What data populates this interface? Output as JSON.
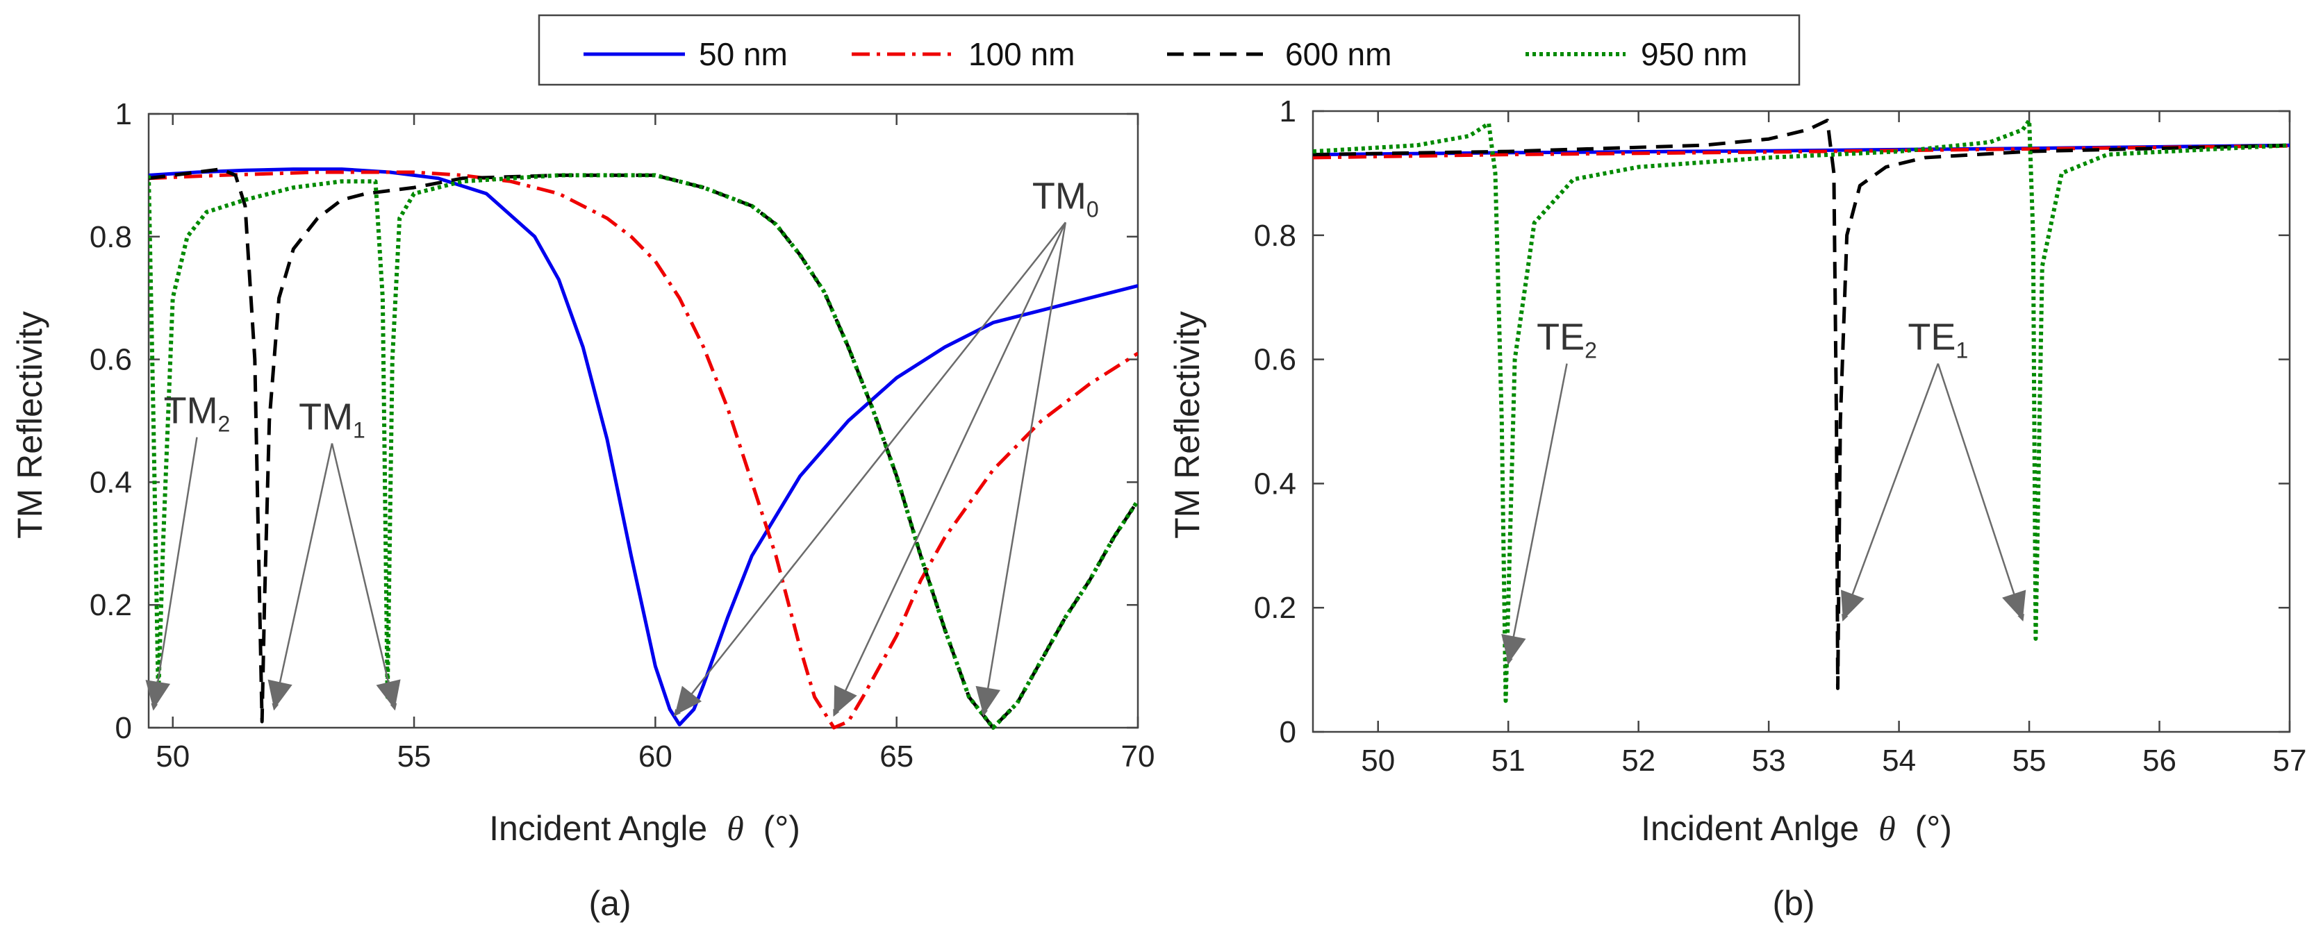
{
  "legend": {
    "entries": [
      {
        "label": "50 nm",
        "color": "#0000ee",
        "dash": "solid"
      },
      {
        "label": "100 nm",
        "color": "#ee0000",
        "dash": "dashdot"
      },
      {
        "label": "600 nm",
        "color": "#000000",
        "dash": "dashed"
      },
      {
        "label": "950 nm",
        "color": "#008a00",
        "dash": "dotted"
      }
    ]
  },
  "chart_data": [
    {
      "type": "line",
      "caption": "(a)",
      "xlabel": "Incident Angle",
      "xlabel_symbol": "θ",
      "xlabel_unit": "(°)",
      "ylabel": "TM Reflectivity",
      "xlim": [
        49.5,
        70
      ],
      "ylim": [
        0,
        1
      ],
      "xticks": [
        50,
        55,
        60,
        65,
        70
      ],
      "yticks": [
        0,
        0.2,
        0.4,
        0.6,
        0.8,
        1
      ],
      "series": [
        {
          "name": "50 nm",
          "points": [
            [
              49.5,
              0.9
            ],
            [
              50.5,
              0.905
            ],
            [
              51.5,
              0.908
            ],
            [
              52.5,
              0.91
            ],
            [
              53.5,
              0.91
            ],
            [
              54.5,
              0.905
            ],
            [
              55.5,
              0.895
            ],
            [
              56.5,
              0.87
            ],
            [
              57.5,
              0.8
            ],
            [
              58,
              0.73
            ],
            [
              58.5,
              0.62
            ],
            [
              59,
              0.47
            ],
            [
              59.5,
              0.28
            ],
            [
              60,
              0.1
            ],
            [
              60.3,
              0.03
            ],
            [
              60.5,
              0.005
            ],
            [
              60.8,
              0.03
            ],
            [
              61,
              0.07
            ],
            [
              61.5,
              0.18
            ],
            [
              62,
              0.28
            ],
            [
              63,
              0.41
            ],
            [
              64,
              0.5
            ],
            [
              65,
              0.57
            ],
            [
              66,
              0.62
            ],
            [
              67,
              0.66
            ],
            [
              68,
              0.68
            ],
            [
              69,
              0.7
            ],
            [
              70,
              0.72
            ]
          ]
        },
        {
          "name": "100 nm",
          "points": [
            [
              49.5,
              0.895
            ],
            [
              51,
              0.9
            ],
            [
              53,
              0.905
            ],
            [
              55,
              0.905
            ],
            [
              56,
              0.9
            ],
            [
              57,
              0.89
            ],
            [
              58,
              0.87
            ],
            [
              59,
              0.83
            ],
            [
              59.5,
              0.8
            ],
            [
              60,
              0.76
            ],
            [
              60.5,
              0.7
            ],
            [
              61,
              0.62
            ],
            [
              61.5,
              0.52
            ],
            [
              62,
              0.4
            ],
            [
              62.5,
              0.28
            ],
            [
              63,
              0.13
            ],
            [
              63.3,
              0.05
            ],
            [
              63.7,
              0
            ],
            [
              64,
              0.01
            ],
            [
              64.3,
              0.05
            ],
            [
              65,
              0.15
            ],
            [
              65.5,
              0.24
            ],
            [
              66,
              0.31
            ],
            [
              67,
              0.42
            ],
            [
              68,
              0.5
            ],
            [
              69,
              0.56
            ],
            [
              70,
              0.61
            ]
          ]
        },
        {
          "name": "600 nm",
          "points": [
            [
              49.5,
              0.895
            ],
            [
              50.5,
              0.905
            ],
            [
              51,
              0.91
            ],
            [
              51.3,
              0.9
            ],
            [
              51.5,
              0.85
            ],
            [
              51.7,
              0.6
            ],
            [
              51.8,
              0.2
            ],
            [
              51.85,
              0.01
            ],
            [
              51.9,
              0.2
            ],
            [
              52,
              0.5
            ],
            [
              52.2,
              0.7
            ],
            [
              52.5,
              0.78
            ],
            [
              53,
              0.83
            ],
            [
              53.5,
              0.86
            ],
            [
              54,
              0.87
            ],
            [
              55,
              0.88
            ],
            [
              56,
              0.895
            ],
            [
              58,
              0.9
            ],
            [
              60,
              0.9
            ],
            [
              61,
              0.88
            ],
            [
              62,
              0.85
            ],
            [
              62.5,
              0.82
            ],
            [
              63,
              0.77
            ],
            [
              63.5,
              0.71
            ],
            [
              64,
              0.62
            ],
            [
              64.5,
              0.52
            ],
            [
              65,
              0.41
            ],
            [
              65.5,
              0.28
            ],
            [
              66,
              0.16
            ],
            [
              66.5,
              0.05
            ],
            [
              67,
              0
            ],
            [
              67.5,
              0.04
            ],
            [
              68,
              0.11
            ],
            [
              68.5,
              0.18
            ],
            [
              69,
              0.24
            ],
            [
              69.5,
              0.31
            ],
            [
              70,
              0.37
            ]
          ]
        },
        {
          "name": "950 nm",
          "points": [
            [
              49.5,
              0.9
            ],
            [
              49.6,
              0.5
            ],
            [
              49.7,
              0.05
            ],
            [
              49.8,
              0.3
            ],
            [
              50,
              0.7
            ],
            [
              50.3,
              0.8
            ],
            [
              50.7,
              0.84
            ],
            [
              51.5,
              0.86
            ],
            [
              52.5,
              0.88
            ],
            [
              53.5,
              0.89
            ],
            [
              54.2,
              0.89
            ],
            [
              54.35,
              0.7
            ],
            [
              54.45,
              0.05
            ],
            [
              54.55,
              0.6
            ],
            [
              54.7,
              0.83
            ],
            [
              55,
              0.87
            ],
            [
              56,
              0.89
            ],
            [
              58,
              0.9
            ],
            [
              60,
              0.9
            ],
            [
              61,
              0.88
            ],
            [
              62,
              0.85
            ],
            [
              62.5,
              0.82
            ],
            [
              63,
              0.77
            ],
            [
              63.5,
              0.71
            ],
            [
              64,
              0.62
            ],
            [
              64.5,
              0.52
            ],
            [
              65,
              0.41
            ],
            [
              65.5,
              0.28
            ],
            [
              66,
              0.16
            ],
            [
              66.5,
              0.05
            ],
            [
              67,
              0
            ],
            [
              67.5,
              0.04
            ],
            [
              68,
              0.11
            ],
            [
              68.5,
              0.18
            ],
            [
              69,
              0.24
            ],
            [
              69.5,
              0.31
            ],
            [
              70,
              0.37
            ]
          ]
        }
      ],
      "annotations": [
        {
          "main": "TM",
          "sub": "2",
          "x": 50.5,
          "y": 0.48,
          "targets": [
            [
              49.6,
              0.03
            ]
          ]
        },
        {
          "main": "TM",
          "sub": "1",
          "x": 53.3,
          "y": 0.47,
          "targets": [
            [
              52.1,
              0.03
            ],
            [
              54.6,
              0.03
            ]
          ]
        },
        {
          "main": "TM",
          "sub": "0",
          "x": 68.5,
          "y": 0.83,
          "targets": [
            [
              60.4,
              0.02
            ],
            [
              63.7,
              0.02
            ],
            [
              66.8,
              0.02
            ]
          ]
        }
      ]
    },
    {
      "type": "line",
      "caption": "(b)",
      "xlabel": "Incident Anlge",
      "xlabel_symbol": "θ",
      "xlabel_unit": "(°)",
      "ylabel": "TM Reflectivity",
      "xlim": [
        49.5,
        57
      ],
      "ylim": [
        0,
        1
      ],
      "xticks": [
        50,
        51,
        52,
        53,
        54,
        55,
        56,
        57
      ],
      "yticks": [
        0,
        0.2,
        0.4,
        0.6,
        0.8,
        1
      ],
      "series": [
        {
          "name": "50 nm",
          "points": [
            [
              49.5,
              0.93
            ],
            [
              51,
              0.933
            ],
            [
              53,
              0.936
            ],
            [
              55,
              0.94
            ],
            [
              57,
              0.945
            ]
          ]
        },
        {
          "name": "100 nm",
          "points": [
            [
              49.5,
              0.925
            ],
            [
              51,
              0.93
            ],
            [
              53,
              0.934
            ],
            [
              55,
              0.939
            ],
            [
              57,
              0.944
            ]
          ]
        },
        {
          "name": "600 nm",
          "points": [
            [
              49.5,
              0.93
            ],
            [
              51,
              0.935
            ],
            [
              52.5,
              0.945
            ],
            [
              53,
              0.955
            ],
            [
              53.3,
              0.97
            ],
            [
              53.45,
              0.985
            ],
            [
              53.5,
              0.9
            ],
            [
              53.52,
              0.5
            ],
            [
              53.53,
              0.07
            ],
            [
              53.55,
              0.5
            ],
            [
              53.6,
              0.8
            ],
            [
              53.7,
              0.88
            ],
            [
              53.9,
              0.91
            ],
            [
              54.2,
              0.925
            ],
            [
              55,
              0.935
            ],
            [
              57,
              0.945
            ]
          ]
        },
        {
          "name": "950 nm",
          "points": [
            [
              49.5,
              0.935
            ],
            [
              50.3,
              0.945
            ],
            [
              50.7,
              0.96
            ],
            [
              50.85,
              0.98
            ],
            [
              50.9,
              0.9
            ],
            [
              50.95,
              0.5
            ],
            [
              50.98,
              0.05
            ],
            [
              51.05,
              0.6
            ],
            [
              51.2,
              0.82
            ],
            [
              51.5,
              0.89
            ],
            [
              52,
              0.91
            ],
            [
              53,
              0.925
            ],
            [
              54,
              0.935
            ],
            [
              54.7,
              0.95
            ],
            [
              54.95,
              0.97
            ],
            [
              55,
              0.985
            ],
            [
              55.03,
              0.8
            ],
            [
              55.05,
              0.15
            ],
            [
              55.1,
              0.75
            ],
            [
              55.25,
              0.9
            ],
            [
              55.6,
              0.93
            ],
            [
              57,
              0.945
            ]
          ]
        }
      ],
      "annotations": [
        {
          "main": "TE",
          "sub": "2",
          "x": 51.45,
          "y": 0.6,
          "targets": [
            [
              51,
              0.11
            ]
          ]
        },
        {
          "main": "TE",
          "sub": "1",
          "x": 54.3,
          "y": 0.6,
          "targets": [
            [
              53.57,
              0.18
            ],
            [
              54.95,
              0.18
            ]
          ]
        }
      ]
    }
  ]
}
